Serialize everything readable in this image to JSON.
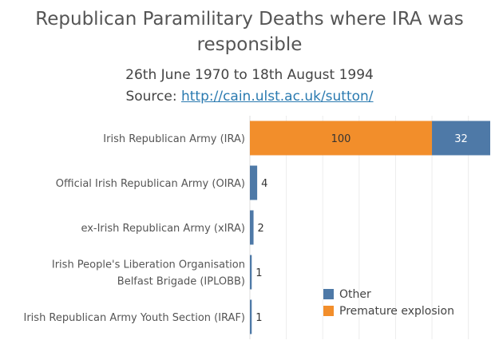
{
  "header": {
    "title": "Republican Paramilitary Deaths where IRA was responsible",
    "subtitle": "26th June 1970 to 18th August 1994",
    "source_prefix": "Source: ",
    "source_link": "http://cain.ulst.ac.uk/sutton/"
  },
  "chart_data": {
    "type": "bar",
    "orientation": "horizontal",
    "stacked": true,
    "categories": [
      [
        "Irish Republican Army (IRA)"
      ],
      [
        "Official Irish Republican Army (OIRA)"
      ],
      [
        "ex-Irish Republican Army (xIRA)"
      ],
      [
        "Irish People's Liberation Organisation",
        "Belfast Brigade (IPLOBB)"
      ],
      [
        "Irish Republican Army Youth Section (IRAF)"
      ]
    ],
    "series": [
      {
        "name": "Premature explosion",
        "color": "#f28e2b",
        "values": [
          100,
          0,
          0,
          0,
          0
        ]
      },
      {
        "name": "Other",
        "color": "#4e79a7",
        "values": [
          32,
          4,
          2,
          1,
          1
        ]
      }
    ],
    "data_labels": [
      [
        "100",
        "32"
      ],
      [
        "4"
      ],
      [
        "2"
      ],
      [
        "1"
      ],
      [
        "1"
      ]
    ],
    "xlim": [
      0,
      132
    ],
    "grid": true,
    "legend_placement": "bottom-right"
  },
  "legend": [
    {
      "label": "Other",
      "color": "#4e79a7"
    },
    {
      "label": "Premature explosion",
      "color": "#f28e2b"
    }
  ]
}
